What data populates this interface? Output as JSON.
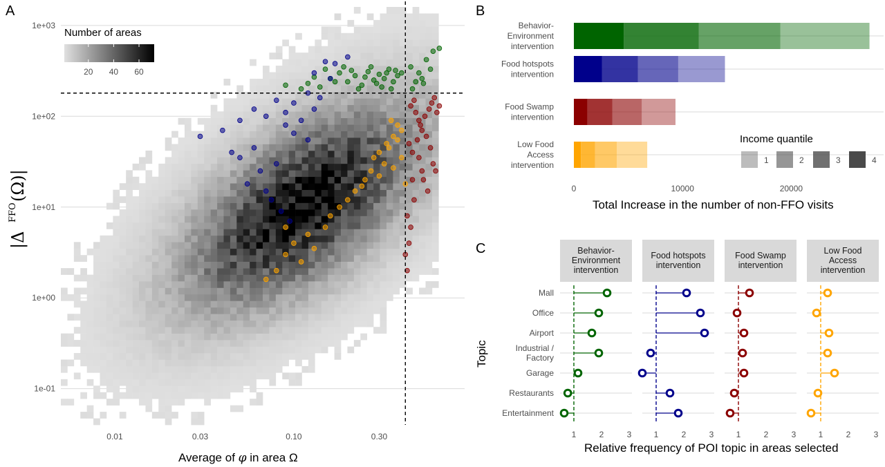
{
  "panels": {
    "a": "A",
    "b": "B",
    "c": "C"
  },
  "colors": {
    "behavior": "#006400",
    "hotspots": "#00008b",
    "swamp": "#8b0000",
    "lowfood": "#ffa500",
    "grid": "#d9d9d9",
    "strip_bg": "#d9d9d9"
  },
  "chart_data": [
    {
      "id": "A",
      "type": "heatmap",
      "xlabel": "Average of φ in area Ω",
      "xlabel_prefix": "Average of ",
      "xlabel_phi": "φ",
      "xlabel_mid": " in area ",
      "xlabel_omega": "Ω",
      "ylabel": "|Δ^FFO(Ω)|",
      "x_scale": "log",
      "y_scale": "log",
      "xlim": [
        0.005,
        0.9
      ],
      "ylim": [
        0.04,
        1600
      ],
      "x_ticks": [
        0.01,
        0.03,
        0.1,
        0.3
      ],
      "x_tick_labels": [
        "0.01",
        "0.03",
        "0.10",
        "0.30"
      ],
      "y_ticks": [
        0.1,
        1,
        10,
        100,
        1000
      ],
      "y_tick_labels": [
        "1e-01",
        "1e+00",
        "1e+01",
        "1e+02",
        "1e+03"
      ],
      "legend_title": "Number of areas",
      "legend_ticks": [
        20,
        40,
        60
      ],
      "legend_tick_labels": [
        "20",
        "40",
        "60"
      ],
      "count_range": [
        1,
        72
      ],
      "vline_x": 0.42,
      "hline_y": 180,
      "density_center_log": [
        -0.95,
        1.0
      ],
      "density_cov": [
        [
          0.19,
          0.2
        ],
        [
          0.2,
          0.55
        ]
      ],
      "peak_count": 70,
      "grid": true,
      "legend_position": "top-left",
      "scatter_series": [
        {
          "key": "behavior",
          "color": "#006400",
          "points": [
            [
              0.12,
              230
            ],
            [
              0.14,
              210
            ],
            [
              0.16,
              260
            ],
            [
              0.18,
              300
            ],
            [
              0.2,
              240
            ],
            [
              0.22,
              280
            ],
            [
              0.24,
              220
            ],
            [
              0.26,
              310
            ],
            [
              0.28,
              250
            ],
            [
              0.3,
              290
            ],
            [
              0.32,
              260
            ],
            [
              0.34,
              330
            ],
            [
              0.36,
              240
            ],
            [
              0.38,
              280
            ],
            [
              0.4,
              300
            ],
            [
              0.15,
              330
            ],
            [
              0.19,
              350
            ],
            [
              0.23,
              200
            ],
            [
              0.27,
              350
            ],
            [
              0.31,
              210
            ],
            [
              0.35,
              200
            ],
            [
              0.25,
              270
            ],
            [
              0.29,
              230
            ],
            [
              0.33,
              300
            ],
            [
              0.21,
              320
            ],
            [
              0.17,
              240
            ],
            [
              0.37,
              320
            ],
            [
              0.13,
              270
            ],
            [
              0.45,
              350
            ],
            [
              0.5,
              300
            ],
            [
              0.55,
              420
            ],
            [
              0.6,
              520
            ],
            [
              0.48,
              240
            ],
            [
              0.52,
              260
            ],
            [
              0.58,
              330
            ],
            [
              0.65,
              560
            ],
            [
              0.46,
              200
            ],
            [
              0.53,
              230
            ],
            [
              0.09,
              220
            ],
            [
              0.11,
              200
            ]
          ]
        },
        {
          "key": "hotspots",
          "color": "#00008b",
          "points": [
            [
              0.03,
              60
            ],
            [
              0.04,
              70
            ],
            [
              0.05,
              90
            ],
            [
              0.06,
              120
            ],
            [
              0.07,
              100
            ],
            [
              0.08,
              150
            ],
            [
              0.09,
              110
            ],
            [
              0.1,
              140
            ],
            [
              0.12,
              180
            ],
            [
              0.14,
              160
            ],
            [
              0.15,
              400
            ],
            [
              0.17,
              380
            ],
            [
              0.2,
              450
            ],
            [
              0.13,
              300
            ],
            [
              0.16,
              260
            ],
            [
              0.11,
              90
            ],
            [
              0.065,
              25
            ],
            [
              0.055,
              18
            ],
            [
              0.075,
              12
            ],
            [
              0.085,
              9
            ],
            [
              0.095,
              7
            ],
            [
              0.05,
              35
            ],
            [
              0.045,
              40
            ],
            [
              0.06,
              45
            ],
            [
              0.07,
              15
            ],
            [
              0.08,
              30
            ],
            [
              0.12,
              55
            ],
            [
              0.1,
              65
            ],
            [
              0.09,
              80
            ],
            [
              0.13,
              120
            ]
          ]
        },
        {
          "key": "swamp",
          "color": "#8b0000",
          "points": [
            [
              0.45,
              130
            ],
            [
              0.48,
              110
            ],
            [
              0.5,
              90
            ],
            [
              0.52,
              70
            ],
            [
              0.55,
              60
            ],
            [
              0.58,
              45
            ],
            [
              0.6,
              30
            ],
            [
              0.62,
              25
            ],
            [
              0.44,
              50
            ],
            [
              0.46,
              40
            ],
            [
              0.5,
              35
            ],
            [
              0.53,
              20
            ],
            [
              0.56,
              15
            ],
            [
              0.47,
              12
            ],
            [
              0.43,
              8
            ],
            [
              0.45,
              6
            ],
            [
              0.44,
              4
            ],
            [
              0.42,
              3
            ],
            [
              0.43,
              2
            ],
            [
              0.46,
              20
            ],
            [
              0.49,
              55
            ],
            [
              0.51,
              80
            ],
            [
              0.54,
              100
            ],
            [
              0.57,
              120
            ],
            [
              0.59,
              140
            ],
            [
              0.61,
              160
            ],
            [
              0.63,
              110
            ],
            [
              0.65,
              130
            ],
            [
              0.47,
              150
            ],
            [
              0.52,
              25
            ]
          ]
        },
        {
          "key": "lowfood",
          "color": "#ffa500",
          "points": [
            [
              0.35,
              90
            ],
            [
              0.38,
              80
            ],
            [
              0.4,
              70
            ],
            [
              0.36,
              60
            ],
            [
              0.33,
              50
            ],
            [
              0.3,
              40
            ],
            [
              0.28,
              35
            ],
            [
              0.32,
              30
            ],
            [
              0.27,
              25
            ],
            [
              0.25,
              20
            ],
            [
              0.22,
              15
            ],
            [
              0.2,
              12
            ],
            [
              0.18,
              10
            ],
            [
              0.16,
              8
            ],
            [
              0.15,
              6
            ],
            [
              0.12,
              5
            ],
            [
              0.1,
              4
            ],
            [
              0.09,
              3
            ],
            [
              0.08,
              2
            ],
            [
              0.07,
              1.6
            ],
            [
              0.11,
              2.5
            ],
            [
              0.13,
              3.5
            ],
            [
              0.09,
              6
            ],
            [
              0.24,
              17
            ],
            [
              0.3,
              22
            ],
            [
              0.34,
              45
            ],
            [
              0.36,
              27
            ],
            [
              0.38,
              55
            ],
            [
              0.4,
              35
            ],
            [
              0.42,
              18
            ]
          ]
        }
      ]
    },
    {
      "id": "B",
      "type": "bar",
      "orientation": "horizontal",
      "stacked": true,
      "categories": [
        "Behavior-\nEnvironment\nintervention",
        "Food hotspots\nintervention",
        "Food Swamp\nintervention",
        "Low Food\nAccess\nintervention"
      ],
      "xlabel": "Total Increase in the number of non-FFO visits",
      "xlim": [
        0,
        28500
      ],
      "x_ticks": [
        0,
        10000,
        20000
      ],
      "x_tick_labels": [
        "0",
        "10000",
        "20000"
      ],
      "legend_title": "Income quantile",
      "legend_labels": [
        "1",
        "2",
        "3",
        "4"
      ],
      "legend_position": "bottom-right",
      "series": [
        {
          "name": "4",
          "values": [
            4600,
            2600,
            1250,
            650
          ]
        },
        {
          "name": "3",
          "values": [
            6900,
            3300,
            2300,
            1300
          ]
        },
        {
          "name": "2",
          "values": [
            7500,
            3700,
            2700,
            2000
          ]
        },
        {
          "name": "1",
          "values": [
            8200,
            4300,
            3100,
            2800
          ]
        }
      ],
      "series_alpha": [
        1.0,
        0.8,
        0.6,
        0.4
      ]
    },
    {
      "id": "C",
      "type": "scatter",
      "subtype": "lollipop-facets",
      "ylabel": "Topic",
      "xlabel": "Relative frequency of POI topic in areas selected",
      "xlim": [
        0.5,
        3.1
      ],
      "x_ticks": [
        1,
        2,
        3
      ],
      "x_tick_labels": [
        "1",
        "2",
        "3"
      ],
      "reference_x": 1,
      "topics": [
        "Mall",
        "Office",
        "Airport",
        "Industrial /\nFactory",
        "Garage",
        "Restaurants",
        "Entertainment"
      ],
      "facets": [
        {
          "key": "behavior",
          "title": "Behavior-\nEnvironment\nintervention",
          "color": "#006400",
          "values": [
            2.2,
            1.9,
            1.65,
            1.9,
            1.15,
            0.78,
            0.65
          ]
        },
        {
          "key": "hotspots",
          "title": "Food hotspots\nintervention",
          "color": "#00008b",
          "values": [
            2.1,
            2.6,
            2.75,
            0.8,
            0.5,
            1.5,
            1.8
          ]
        },
        {
          "key": "swamp",
          "title": "Food Swamp\nintervention",
          "color": "#8b0000",
          "values": [
            1.4,
            0.95,
            1.2,
            1.15,
            1.2,
            0.85,
            0.7
          ]
        },
        {
          "key": "lowfood",
          "title": "Low Food\nAccess\nintervention",
          "color": "#ffa500",
          "values": [
            1.25,
            0.85,
            1.3,
            1.25,
            1.5,
            0.9,
            0.65
          ]
        }
      ]
    }
  ]
}
